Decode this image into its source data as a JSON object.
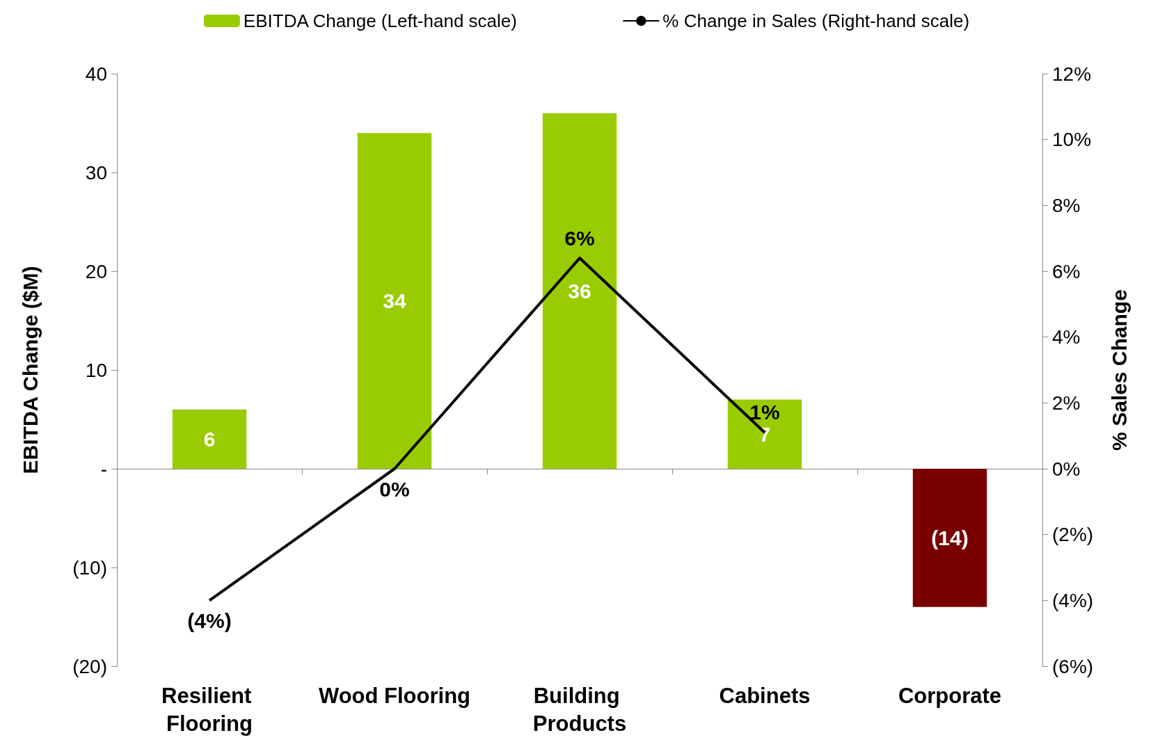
{
  "chart_data": {
    "type": "bar",
    "ylabel": "EBITDA Change ($M)",
    "y2label": "% Sales Change",
    "legend": "top",
    "categories": [
      "Resilient Flooring",
      "Wood Flooring",
      "Building Products",
      "Cabinets",
      "Corporate"
    ],
    "ylim": [
      -20,
      40
    ],
    "yticks": [
      {
        "value": -20,
        "label": "(20)"
      },
      {
        "value": -10,
        "label": "(10)"
      },
      {
        "value": 0,
        "label": "-"
      },
      10,
      20,
      30,
      40
    ],
    "y2lim": [
      -6,
      12
    ],
    "y2ticks": [
      {
        "value": -6,
        "label": "(6%)"
      },
      {
        "value": -4,
        "label": "(4%)"
      },
      {
        "value": -2,
        "label": "(2%)"
      },
      {
        "value": 0,
        "label": "0%"
      },
      {
        "value": 2,
        "label": "2%"
      },
      {
        "value": 4,
        "label": "4%"
      },
      {
        "value": 6,
        "label": "6%"
      },
      {
        "value": 8,
        "label": "8%"
      },
      {
        "value": 10,
        "label": "10%"
      },
      {
        "value": 12,
        "label": "12%"
      }
    ],
    "series": [
      {
        "name": "EBITDA Change (Left-hand scale)",
        "color": "#99cc00",
        "colors": [
          "#99cc00",
          "#99cc00",
          "#99cc00",
          "#99cc00",
          "#7a0000"
        ],
        "values": [
          6,
          34,
          36,
          7,
          -14
        ],
        "value_labels": [
          "6",
          "34",
          "36",
          "7",
          "(14)"
        ]
      },
      {
        "name": "% Change in Sales (Right-hand scale)",
        "type": "line",
        "axis": "y2",
        "color": "#000000",
        "values": [
          -4,
          0,
          6.4,
          1.1,
          null
        ],
        "value_labels": [
          "(4%)",
          "0%",
          "6%",
          "1%",
          null
        ]
      }
    ]
  }
}
